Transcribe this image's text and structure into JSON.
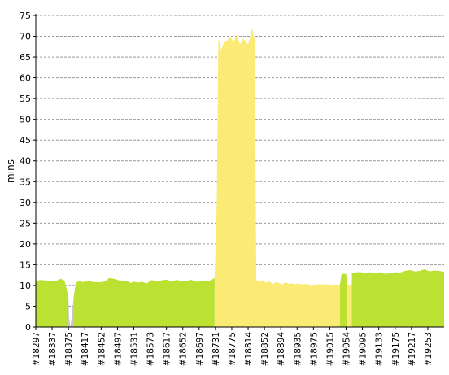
{
  "chart_data": {
    "type": "area",
    "ylabel": "mins",
    "ylim": [
      0,
      75
    ],
    "yticks": [
      0,
      5,
      10,
      15,
      20,
      25,
      30,
      35,
      40,
      45,
      50,
      55,
      60,
      65,
      70,
      75
    ],
    "grid": true,
    "x_tick_labels": [
      "#18297",
      "#18337",
      "#18375",
      "#18417",
      "#18452",
      "#18497",
      "#18531",
      "#18573",
      "#18617",
      "#18652",
      "#18697",
      "#18731",
      "#18775",
      "#18814",
      "#18852",
      "#18894",
      "#18935",
      "#18975",
      "#19015",
      "#19054",
      "#19095",
      "#19133",
      "#19175",
      "#19217",
      "#19253"
    ],
    "colors": {
      "success": "#bbe133",
      "unstable": "#fbea73",
      "failure": "#c4c4c4",
      "grid": "#999999"
    },
    "series": [
      {
        "status": "success",
        "values": [
          [
            0,
            11.1
          ],
          [
            0.3,
            11.3
          ],
          [
            0.6,
            11.2
          ],
          [
            0.9,
            11.0
          ],
          [
            1.2,
            11.0
          ],
          [
            1.5,
            11.6
          ],
          [
            1.75,
            11.2
          ],
          [
            1.9,
            9.0
          ],
          [
            2.0,
            7.0
          ]
        ]
      },
      {
        "status": "failure",
        "values": [
          [
            2.0,
            7.0
          ],
          [
            2.05,
            2.0
          ],
          [
            2.12,
            0.0
          ],
          [
            2.2,
            2.5
          ],
          [
            2.3,
            6.5
          ]
        ]
      },
      {
        "status": "success",
        "values": [
          [
            2.3,
            6.5
          ],
          [
            2.45,
            10.8
          ],
          [
            2.7,
            11.0
          ],
          [
            2.9,
            10.8
          ],
          [
            3.2,
            11.2
          ],
          [
            3.5,
            10.8
          ],
          [
            4.0,
            10.8
          ],
          [
            4.25,
            11.0
          ],
          [
            4.5,
            11.8
          ],
          [
            4.8,
            11.6
          ],
          [
            5.1,
            11.2
          ],
          [
            5.4,
            11.0
          ],
          [
            5.6,
            11.1
          ],
          [
            5.8,
            10.6
          ],
          [
            6.0,
            10.9
          ],
          [
            6.3,
            10.7
          ],
          [
            6.5,
            10.9
          ],
          [
            6.8,
            10.5
          ],
          [
            7.1,
            11.3
          ],
          [
            7.4,
            11.0
          ],
          [
            7.7,
            11.2
          ],
          [
            8.0,
            11.4
          ],
          [
            8.3,
            11.0
          ],
          [
            8.6,
            11.3
          ],
          [
            8.9,
            11.1
          ],
          [
            9.2,
            11.0
          ],
          [
            9.5,
            11.4
          ],
          [
            9.8,
            10.9
          ],
          [
            10.1,
            11.0
          ],
          [
            10.4,
            11.0
          ],
          [
            10.7,
            11.2
          ],
          [
            10.95,
            11.8
          ]
        ]
      },
      {
        "status": "unstable",
        "values": [
          [
            10.95,
            11.8
          ],
          [
            11.08,
            30.0
          ],
          [
            11.18,
            69.5
          ],
          [
            11.35,
            66.7
          ],
          [
            11.5,
            68.3
          ],
          [
            11.7,
            68.9
          ],
          [
            11.9,
            70.0
          ],
          [
            12.1,
            68.5
          ],
          [
            12.3,
            70.5
          ],
          [
            12.5,
            68.0
          ],
          [
            12.7,
            69.5
          ],
          [
            13.0,
            68.0
          ],
          [
            13.25,
            72.0
          ],
          [
            13.4,
            69.0
          ],
          [
            13.5,
            11.3
          ],
          [
            13.7,
            10.9
          ],
          [
            13.9,
            11.1
          ],
          [
            14.1,
            10.7
          ],
          [
            14.3,
            11.0
          ],
          [
            14.5,
            10.3
          ],
          [
            14.7,
            10.8
          ],
          [
            14.9,
            10.6
          ],
          [
            15.1,
            10.2
          ],
          [
            15.3,
            10.8
          ],
          [
            15.5,
            10.4
          ],
          [
            15.7,
            10.5
          ],
          [
            15.9,
            10.3
          ],
          [
            16.1,
            10.5
          ],
          [
            16.3,
            10.2
          ],
          [
            16.6,
            10.4
          ],
          [
            16.9,
            10.0
          ],
          [
            17.2,
            10.3
          ],
          [
            17.5,
            10.2
          ],
          [
            17.8,
            10.3
          ],
          [
            18.1,
            10.1
          ],
          [
            18.4,
            10.2
          ],
          [
            18.62,
            10.2
          ]
        ]
      },
      {
        "status": "success",
        "values": [
          [
            18.62,
            10.2
          ],
          [
            18.72,
            12.8
          ],
          [
            19.0,
            12.8
          ],
          [
            19.08,
            10.2
          ]
        ]
      },
      {
        "status": "unstable",
        "values": [
          [
            19.08,
            10.2
          ],
          [
            19.35,
            10.2
          ]
        ]
      },
      {
        "status": "success",
        "values": [
          [
            19.35,
            13.0
          ],
          [
            19.6,
            13.2
          ],
          [
            19.9,
            13.2
          ],
          [
            20.2,
            13.0
          ],
          [
            20.5,
            13.2
          ],
          [
            20.8,
            13.0
          ],
          [
            21.1,
            13.2
          ],
          [
            21.4,
            12.8
          ],
          [
            21.7,
            13.0
          ],
          [
            22.0,
            13.2
          ],
          [
            22.3,
            13.1
          ],
          [
            22.6,
            13.5
          ],
          [
            22.9,
            13.7
          ],
          [
            23.2,
            13.4
          ],
          [
            23.5,
            13.5
          ],
          [
            23.8,
            13.9
          ],
          [
            24.1,
            13.4
          ],
          [
            24.4,
            13.6
          ],
          [
            24.7,
            13.5
          ],
          [
            25.0,
            13.3
          ]
        ]
      }
    ]
  }
}
